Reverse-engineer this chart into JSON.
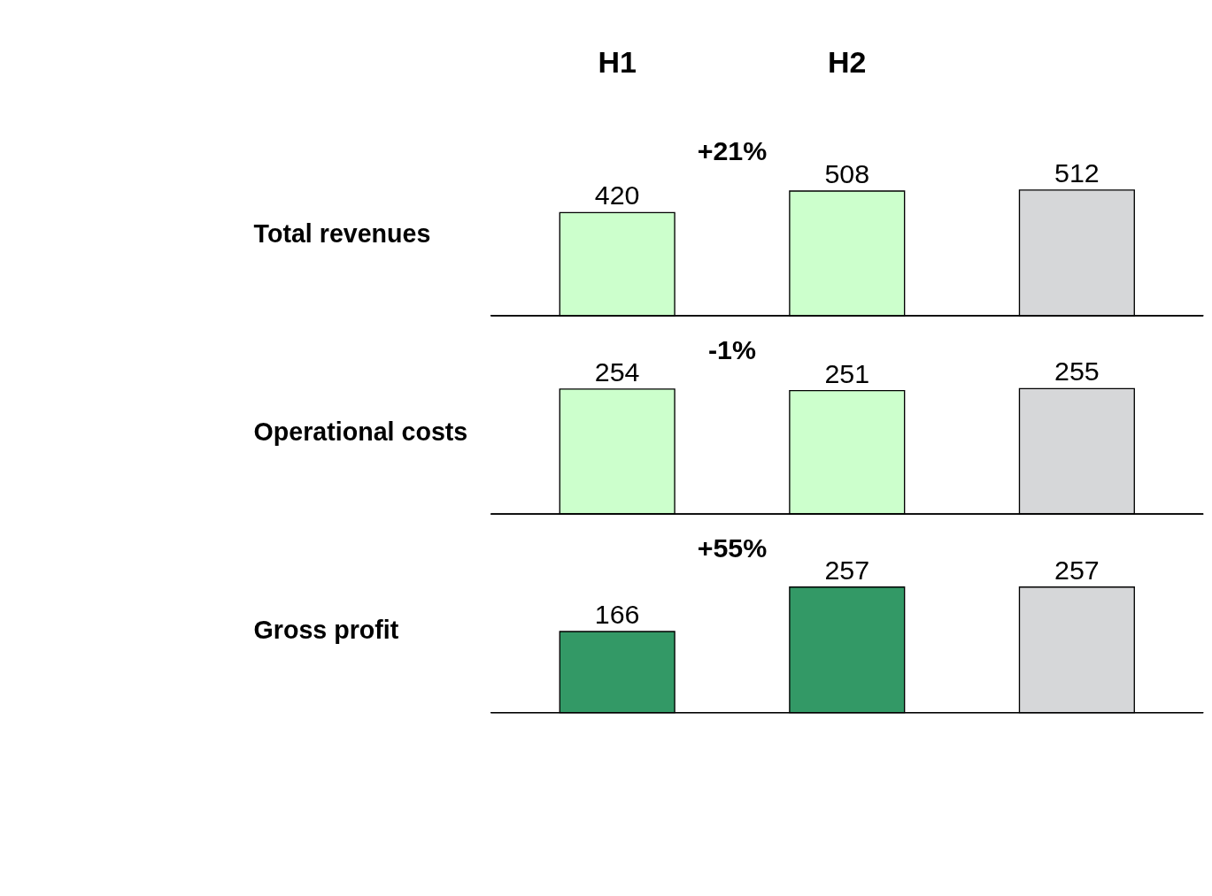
{
  "chart_data": [
    {
      "type": "bar",
      "ylabel": "Total revenues",
      "categories": [
        "H1",
        "H2",
        null
      ],
      "values": [
        420,
        508,
        512
      ],
      "colors": [
        "#ccffcc",
        "#ccffcc",
        "#d6d7d9"
      ],
      "data_labels": true,
      "annotations": [
        "+21%"
      ],
      "tick_labels": "x"
    },
    {
      "type": "bar",
      "ylabel": "Operational costs",
      "categories": [
        null,
        null,
        null
      ],
      "values": [
        254,
        251,
        255
      ],
      "colors": [
        "#ccffcc",
        "#ccffcc",
        "#d6d7d9"
      ],
      "data_labels": true,
      "annotations": [
        "-1%"
      ],
      "tick_labels": false
    },
    {
      "type": "bar",
      "ylabel": "Gross profit",
      "categories": [
        null,
        null,
        null
      ],
      "values": [
        166,
        257,
        257
      ],
      "colors": [
        "#339966",
        "#339966",
        "#d6d7d9"
      ],
      "data_labels": true,
      "annotations": [
        "+55%"
      ],
      "tick_labels": false
    }
  ]
}
